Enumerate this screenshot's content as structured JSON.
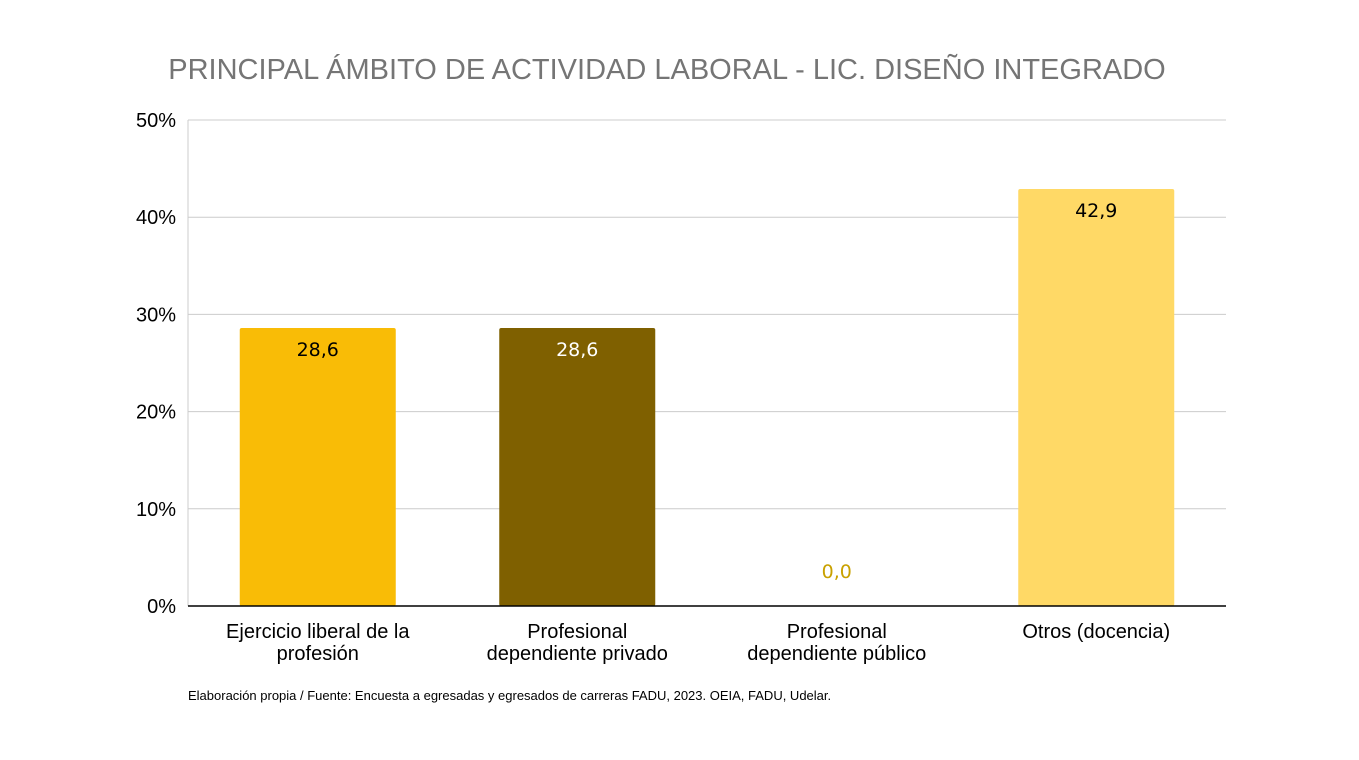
{
  "chart_data": {
    "type": "bar",
    "title": "PRINCIPAL ÁMBITO DE ACTIVIDAD LABORAL - LIC. DISEÑO INTEGRADO",
    "categories": [
      [
        "Ejercicio liberal de la",
        "profesión"
      ],
      [
        "Profesional",
        "dependiente privado"
      ],
      [
        "Profesional",
        "dependiente público"
      ],
      [
        "Otros (docencia)"
      ]
    ],
    "values": [
      28.6,
      28.6,
      0.0,
      42.9
    ],
    "data_labels": [
      "28,6",
      "28,6",
      "0,0",
      "42,9"
    ],
    "colors": [
      "#F9BC06",
      "#7F6000",
      "#C9A100",
      "#FFD966"
    ],
    "label_colors": [
      "#000000",
      "#ffffff",
      "#C9A100",
      "#000000"
    ],
    "ylim": [
      0,
      50
    ],
    "yticks": [
      0,
      10,
      20,
      30,
      40,
      50
    ],
    "ytick_labels": [
      "0%",
      "10%",
      "20%",
      "30%",
      "40%",
      "50%"
    ],
    "grid": true,
    "grid_color": "#cccccc",
    "axis_color": "#000000",
    "xlabel": "",
    "ylabel": ""
  },
  "footer": {
    "source": "Elaboración propia / Fuente: Encuesta a egresadas y egresados de carreras FADU, 2023. OEIA, FADU, Udelar."
  }
}
